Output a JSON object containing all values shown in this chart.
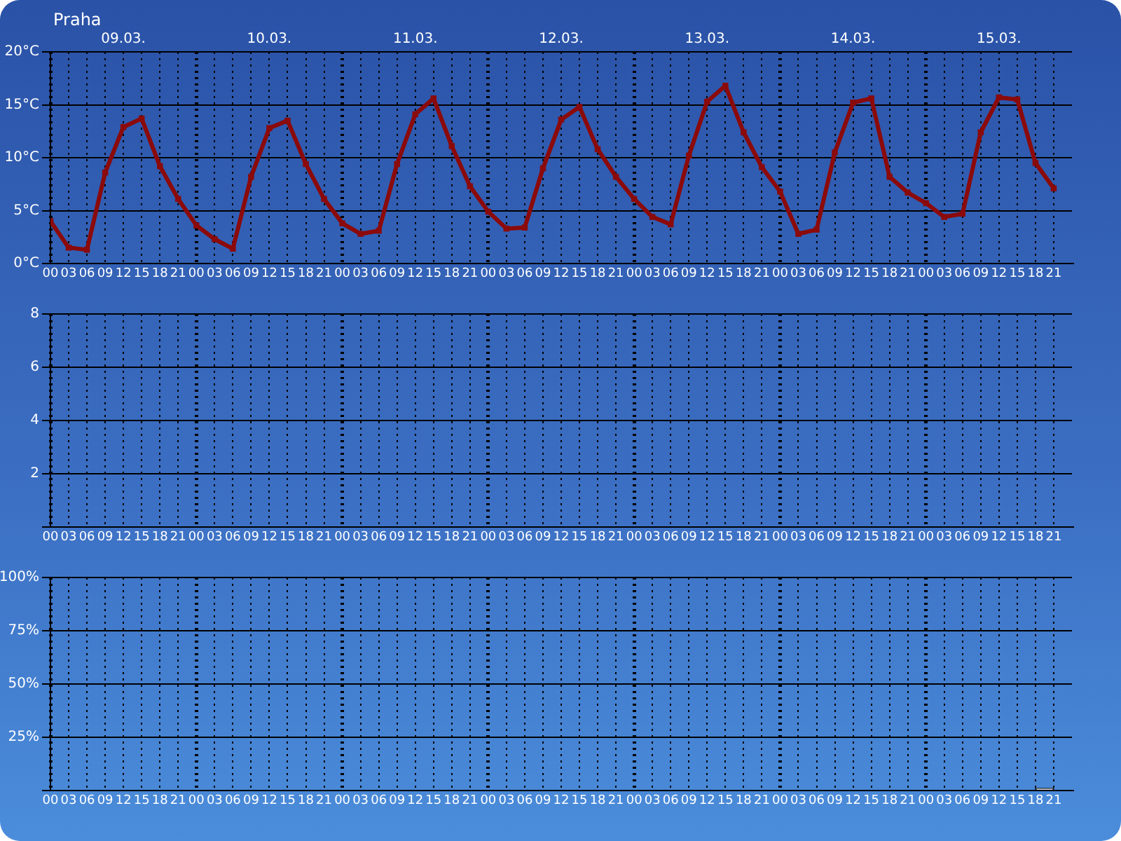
{
  "chart_data": [
    {
      "type": "line",
      "title": "Praha",
      "x": [
        "--03-09T00:00",
        "--03-09T03:00",
        "--03-09T06:00",
        "--03-09T09:00",
        "--03-09T12:00",
        "--03-09T15:00",
        "--03-09T18:00",
        "--03-09T21:00",
        "--03-10T00:00",
        "--03-10T03:00",
        "--03-10T06:00",
        "--03-10T09:00",
        "--03-10T12:00",
        "--03-10T15:00",
        "--03-10T18:00",
        "--03-10T21:00",
        "--03-11T00:00",
        "--03-11T03:00",
        "--03-11T06:00",
        "--03-11T09:00",
        "--03-11T12:00",
        "--03-11T15:00",
        "--03-11T18:00",
        "--03-11T21:00",
        "--03-12T00:00",
        "--03-12T03:00",
        "--03-12T06:00",
        "--03-12T09:00",
        "--03-12T12:00",
        "--03-12T15:00",
        "--03-12T18:00",
        "--03-12T21:00",
        "--03-13T00:00",
        "--03-13T03:00",
        "--03-13T06:00",
        "--03-13T09:00",
        "--03-13T12:00",
        "--03-13T15:00",
        "--03-13T18:00",
        "--03-13T21:00",
        "--03-14T00:00",
        "--03-14T03:00",
        "--03-14T06:00",
        "--03-14T09:00",
        "--03-14T12:00",
        "--03-14T15:00",
        "--03-14T18:00",
        "--03-14T21:00",
        "--03-15T00:00",
        "--03-15T03:00",
        "--03-15T06:00",
        "--03-15T09:00",
        "--03-15T12:00",
        "--03-15T15:00",
        "--03-15T18:00",
        "--03-15T21:00"
      ],
      "values": [
        4,
        1.5,
        1.3,
        8.6,
        12.9,
        13.7,
        9.2,
        6.1,
        3.6,
        2.3,
        1.4,
        8.2,
        12.8,
        13.5,
        9.4,
        6.1,
        3.8,
        2.8,
        3.1,
        9.4,
        14.1,
        15.6,
        11.1,
        7.3,
        4.9,
        3.3,
        3.4,
        9.0,
        13.6,
        14.8,
        10.8,
        8.2,
        6.1,
        4.4,
        3.7,
        10.2,
        15.3,
        16.8,
        12.4,
        9.1,
        6.8,
        2.8,
        3.2,
        10.5,
        15.2,
        15.6,
        8.2,
        6.7,
        5.7,
        4.4,
        4.7,
        12.4,
        15.7,
        15.5,
        9.5,
        7.1
      ],
      "color": "#8b0a0a",
      "marker": "square",
      "line_style": "solid",
      "xlim": [
        "--03-09T00:00",
        "--03-16T00:00"
      ],
      "xticks": [
        {
          "value": "--03-09T00:00",
          "label": "00"
        },
        {
          "value": "--03-09T03:00",
          "label": "03"
        },
        {
          "value": "--03-09T06:00",
          "label": "06"
        },
        {
          "value": "--03-09T09:00",
          "label": "09"
        },
        {
          "value": "--03-09T12:00",
          "label": "12"
        },
        {
          "value": "--03-09T15:00",
          "label": "15"
        },
        {
          "value": "--03-09T18:00",
          "label": "18"
        },
        {
          "value": "--03-09T21:00",
          "label": "21"
        },
        {
          "value": "--03-10T00:00",
          "label": "00"
        },
        {
          "value": "--03-10T03:00",
          "label": "03"
        },
        {
          "value": "--03-10T06:00",
          "label": "06"
        },
        {
          "value": "--03-10T09:00",
          "label": "09"
        },
        {
          "value": "--03-10T12:00",
          "label": "12"
        },
        {
          "value": "--03-10T15:00",
          "label": "15"
        },
        {
          "value": "--03-10T18:00",
          "label": "18"
        },
        {
          "value": "--03-10T21:00",
          "label": "21"
        },
        {
          "value": "--03-11T00:00",
          "label": "00"
        },
        {
          "value": "--03-11T03:00",
          "label": "03"
        },
        {
          "value": "--03-11T06:00",
          "label": "06"
        },
        {
          "value": "--03-11T09:00",
          "label": "09"
        },
        {
          "value": "--03-11T12:00",
          "label": "12"
        },
        {
          "value": "--03-11T15:00",
          "label": "15"
        },
        {
          "value": "--03-11T18:00",
          "label": "18"
        },
        {
          "value": "--03-11T21:00",
          "label": "21"
        },
        {
          "value": "--03-12T00:00",
          "label": "00"
        },
        {
          "value": "--03-12T03:00",
          "label": "03"
        },
        {
          "value": "--03-12T06:00",
          "label": "06"
        },
        {
          "value": "--03-12T09:00",
          "label": "09"
        },
        {
          "value": "--03-12T12:00",
          "label": "12"
        },
        {
          "value": "--03-12T15:00",
          "label": "15"
        },
        {
          "value": "--03-12T18:00",
          "label": "18"
        },
        {
          "value": "--03-12T21:00",
          "label": "21"
        },
        {
          "value": "--03-13T00:00",
          "label": "00"
        },
        {
          "value": "--03-13T03:00",
          "label": "03"
        },
        {
          "value": "--03-13T06:00",
          "label": "06"
        },
        {
          "value": "--03-13T09:00",
          "label": "09"
        },
        {
          "value": "--03-13T12:00",
          "label": "12"
        },
        {
          "value": "--03-13T15:00",
          "label": "15"
        },
        {
          "value": "--03-13T18:00",
          "label": "18"
        },
        {
          "value": "--03-13T21:00",
          "label": "21"
        },
        {
          "value": "--03-14T00:00",
          "label": "00"
        },
        {
          "value": "--03-14T03:00",
          "label": "03"
        },
        {
          "value": "--03-14T06:00",
          "label": "06"
        },
        {
          "value": "--03-14T09:00",
          "label": "09"
        },
        {
          "value": "--03-14T12:00",
          "label": "12"
        },
        {
          "value": "--03-14T15:00",
          "label": "15"
        },
        {
          "value": "--03-14T18:00",
          "label": "18"
        },
        {
          "value": "--03-14T21:00",
          "label": "21"
        },
        {
          "value": "--03-15T00:00",
          "label": "00"
        },
        {
          "value": "--03-15T03:00",
          "label": "03"
        },
        {
          "value": "--03-15T06:00",
          "label": "06"
        },
        {
          "value": "--03-15T09:00",
          "label": "09"
        },
        {
          "value": "--03-15T12:00",
          "label": "12"
        },
        {
          "value": "--03-15T15:00",
          "label": "15"
        },
        {
          "value": "--03-15T18:00",
          "label": "18"
        },
        {
          "value": "--03-15T21:00",
          "label": "21"
        }
      ],
      "x2lim": [
        "--03-09T00:00",
        "--03-16T00:00"
      ],
      "x2ticks": [
        {
          "value": "--03-09T12:00",
          "label": "09.03."
        },
        {
          "value": "--03-10T12:00",
          "label": "10.03."
        },
        {
          "value": "--03-11T12:00",
          "label": "11.03."
        },
        {
          "value": "--03-12T12:00",
          "label": "12.03."
        },
        {
          "value": "--03-13T12:00",
          "label": "13.03."
        },
        {
          "value": "--03-14T12:00",
          "label": "14.03."
        },
        {
          "value": "--03-15T12:00",
          "label": "15.03."
        }
      ],
      "ylim": [
        0,
        20
      ],
      "yticks": [
        {
          "value": 0,
          "label": "0°C"
        },
        {
          "value": 5,
          "label": "5°C"
        },
        {
          "value": 10,
          "label": "10°C"
        },
        {
          "value": 15,
          "label": "15°C"
        },
        {
          "value": 20,
          "label": "20°C"
        }
      ],
      "grid": true
    },
    {
      "type": "bar",
      "xlim": [
        "--03-09T00:00",
        "--03-16T00:00"
      ],
      "xticks": [
        {
          "value": "--03-09T00:00",
          "label": "00"
        },
        {
          "value": "--03-09T03:00",
          "label": "03"
        },
        {
          "value": "--03-09T06:00",
          "label": "06"
        },
        {
          "value": "--03-09T09:00",
          "label": "09"
        },
        {
          "value": "--03-09T12:00",
          "label": "12"
        },
        {
          "value": "--03-09T15:00",
          "label": "15"
        },
        {
          "value": "--03-09T18:00",
          "label": "18"
        },
        {
          "value": "--03-09T21:00",
          "label": "21"
        },
        {
          "value": "--03-10T00:00",
          "label": "00"
        },
        {
          "value": "--03-10T03:00",
          "label": "03"
        },
        {
          "value": "--03-10T06:00",
          "label": "06"
        },
        {
          "value": "--03-10T09:00",
          "label": "09"
        },
        {
          "value": "--03-10T12:00",
          "label": "12"
        },
        {
          "value": "--03-10T15:00",
          "label": "15"
        },
        {
          "value": "--03-10T18:00",
          "label": "18"
        },
        {
          "value": "--03-10T21:00",
          "label": "21"
        },
        {
          "value": "--03-11T00:00",
          "label": "00"
        },
        {
          "value": "--03-11T03:00",
          "label": "03"
        },
        {
          "value": "--03-11T06:00",
          "label": "06"
        },
        {
          "value": "--03-11T09:00",
          "label": "09"
        },
        {
          "value": "--03-11T12:00",
          "label": "12"
        },
        {
          "value": "--03-11T15:00",
          "label": "15"
        },
        {
          "value": "--03-11T18:00",
          "label": "18"
        },
        {
          "value": "--03-11T21:00",
          "label": "21"
        },
        {
          "value": "--03-12T00:00",
          "label": "00"
        },
        {
          "value": "--03-12T03:00",
          "label": "03"
        },
        {
          "value": "--03-12T06:00",
          "label": "06"
        },
        {
          "value": "--03-12T09:00",
          "label": "09"
        },
        {
          "value": "--03-12T12:00",
          "label": "12"
        },
        {
          "value": "--03-12T15:00",
          "label": "15"
        },
        {
          "value": "--03-12T18:00",
          "label": "18"
        },
        {
          "value": "--03-12T21:00",
          "label": "21"
        },
        {
          "value": "--03-13T00:00",
          "label": "00"
        },
        {
          "value": "--03-13T03:00",
          "label": "03"
        },
        {
          "value": "--03-13T06:00",
          "label": "06"
        },
        {
          "value": "--03-13T09:00",
          "label": "09"
        },
        {
          "value": "--03-13T12:00",
          "label": "12"
        },
        {
          "value": "--03-13T15:00",
          "label": "15"
        },
        {
          "value": "--03-13T18:00",
          "label": "18"
        },
        {
          "value": "--03-13T21:00",
          "label": "21"
        },
        {
          "value": "--03-14T00:00",
          "label": "00"
        },
        {
          "value": "--03-14T03:00",
          "label": "03"
        },
        {
          "value": "--03-14T06:00",
          "label": "06"
        },
        {
          "value": "--03-14T09:00",
          "label": "09"
        },
        {
          "value": "--03-14T12:00",
          "label": "12"
        },
        {
          "value": "--03-14T15:00",
          "label": "15"
        },
        {
          "value": "--03-14T18:00",
          "label": "18"
        },
        {
          "value": "--03-14T21:00",
          "label": "21"
        },
        {
          "value": "--03-15T00:00",
          "label": "00"
        },
        {
          "value": "--03-15T03:00",
          "label": "03"
        },
        {
          "value": "--03-15T06:00",
          "label": "06"
        },
        {
          "value": "--03-15T09:00",
          "label": "09"
        },
        {
          "value": "--03-15T12:00",
          "label": "12"
        },
        {
          "value": "--03-15T15:00",
          "label": "15"
        },
        {
          "value": "--03-15T18:00",
          "label": "18"
        },
        {
          "value": "--03-15T21:00",
          "label": "21"
        }
      ],
      "ylim": [
        0,
        8
      ],
      "yticks": [
        {
          "value": 0,
          "label": null
        },
        2,
        4,
        6,
        8
      ],
      "grid": true
    },
    {
      "type": "bar",
      "x": [
        "--03-15T19:30"
      ],
      "values": [
        1
      ],
      "color": "#c8c8c8",
      "xlim": [
        "--03-09T00:00",
        "--03-16T00:00"
      ],
      "xticks": [
        {
          "value": "--03-09T00:00",
          "label": "00"
        },
        {
          "value": "--03-09T03:00",
          "label": "03"
        },
        {
          "value": "--03-09T06:00",
          "label": "06"
        },
        {
          "value": "--03-09T09:00",
          "label": "09"
        },
        {
          "value": "--03-09T12:00",
          "label": "12"
        },
        {
          "value": "--03-09T15:00",
          "label": "15"
        },
        {
          "value": "--03-09T18:00",
          "label": "18"
        },
        {
          "value": "--03-09T21:00",
          "label": "21"
        },
        {
          "value": "--03-10T00:00",
          "label": "00"
        },
        {
          "value": "--03-10T03:00",
          "label": "03"
        },
        {
          "value": "--03-10T06:00",
          "label": "06"
        },
        {
          "value": "--03-10T09:00",
          "label": "09"
        },
        {
          "value": "--03-10T12:00",
          "label": "12"
        },
        {
          "value": "--03-10T15:00",
          "label": "15"
        },
        {
          "value": "--03-10T18:00",
          "label": "18"
        },
        {
          "value": "--03-10T21:00",
          "label": "21"
        },
        {
          "value": "--03-11T00:00",
          "label": "00"
        },
        {
          "value": "--03-11T03:00",
          "label": "03"
        },
        {
          "value": "--03-11T06:00",
          "label": "06"
        },
        {
          "value": "--03-11T09:00",
          "label": "09"
        },
        {
          "value": "--03-11T12:00",
          "label": "12"
        },
        {
          "value": "--03-11T15:00",
          "label": "15"
        },
        {
          "value": "--03-11T18:00",
          "label": "18"
        },
        {
          "value": "--03-11T21:00",
          "label": "21"
        },
        {
          "value": "--03-12T00:00",
          "label": "00"
        },
        {
          "value": "--03-12T03:00",
          "label": "03"
        },
        {
          "value": "--03-12T06:00",
          "label": "06"
        },
        {
          "value": "--03-12T09:00",
          "label": "09"
        },
        {
          "value": "--03-12T12:00",
          "label": "12"
        },
        {
          "value": "--03-12T15:00",
          "label": "15"
        },
        {
          "value": "--03-12T18:00",
          "label": "18"
        },
        {
          "value": "--03-12T21:00",
          "label": "21"
        },
        {
          "value": "--03-13T00:00",
          "label": "00"
        },
        {
          "value": "--03-13T03:00",
          "label": "03"
        },
        {
          "value": "--03-13T06:00",
          "label": "06"
        },
        {
          "value": "--03-13T09:00",
          "label": "09"
        },
        {
          "value": "--03-13T12:00",
          "label": "12"
        },
        {
          "value": "--03-13T15:00",
          "label": "15"
        },
        {
          "value": "--03-13T18:00",
          "label": "18"
        },
        {
          "value": "--03-13T21:00",
          "label": "21"
        },
        {
          "value": "--03-14T00:00",
          "label": "00"
        },
        {
          "value": "--03-14T03:00",
          "label": "03"
        },
        {
          "value": "--03-14T06:00",
          "label": "06"
        },
        {
          "value": "--03-14T09:00",
          "label": "09"
        },
        {
          "value": "--03-14T12:00",
          "label": "12"
        },
        {
          "value": "--03-14T15:00",
          "label": "15"
        },
        {
          "value": "--03-14T18:00",
          "label": "18"
        },
        {
          "value": "--03-14T21:00",
          "label": "21"
        },
        {
          "value": "--03-15T00:00",
          "label": "00"
        },
        {
          "value": "--03-15T03:00",
          "label": "03"
        },
        {
          "value": "--03-15T06:00",
          "label": "06"
        },
        {
          "value": "--03-15T09:00",
          "label": "09"
        },
        {
          "value": "--03-15T12:00",
          "label": "12"
        },
        {
          "value": "--03-15T15:00",
          "label": "15"
        },
        {
          "value": "--03-15T18:00",
          "label": "18"
        },
        {
          "value": "--03-15T21:00",
          "label": "21"
        }
      ],
      "ylim": [
        0,
        100
      ],
      "yticks": [
        {
          "value": 0,
          "label": null
        },
        {
          "value": 25,
          "label": "25%"
        },
        {
          "value": 50,
          "label": "50%"
        },
        {
          "value": 75,
          "label": "75%"
        },
        {
          "value": 100,
          "label": "100%"
        }
      ],
      "grid": true
    }
  ]
}
